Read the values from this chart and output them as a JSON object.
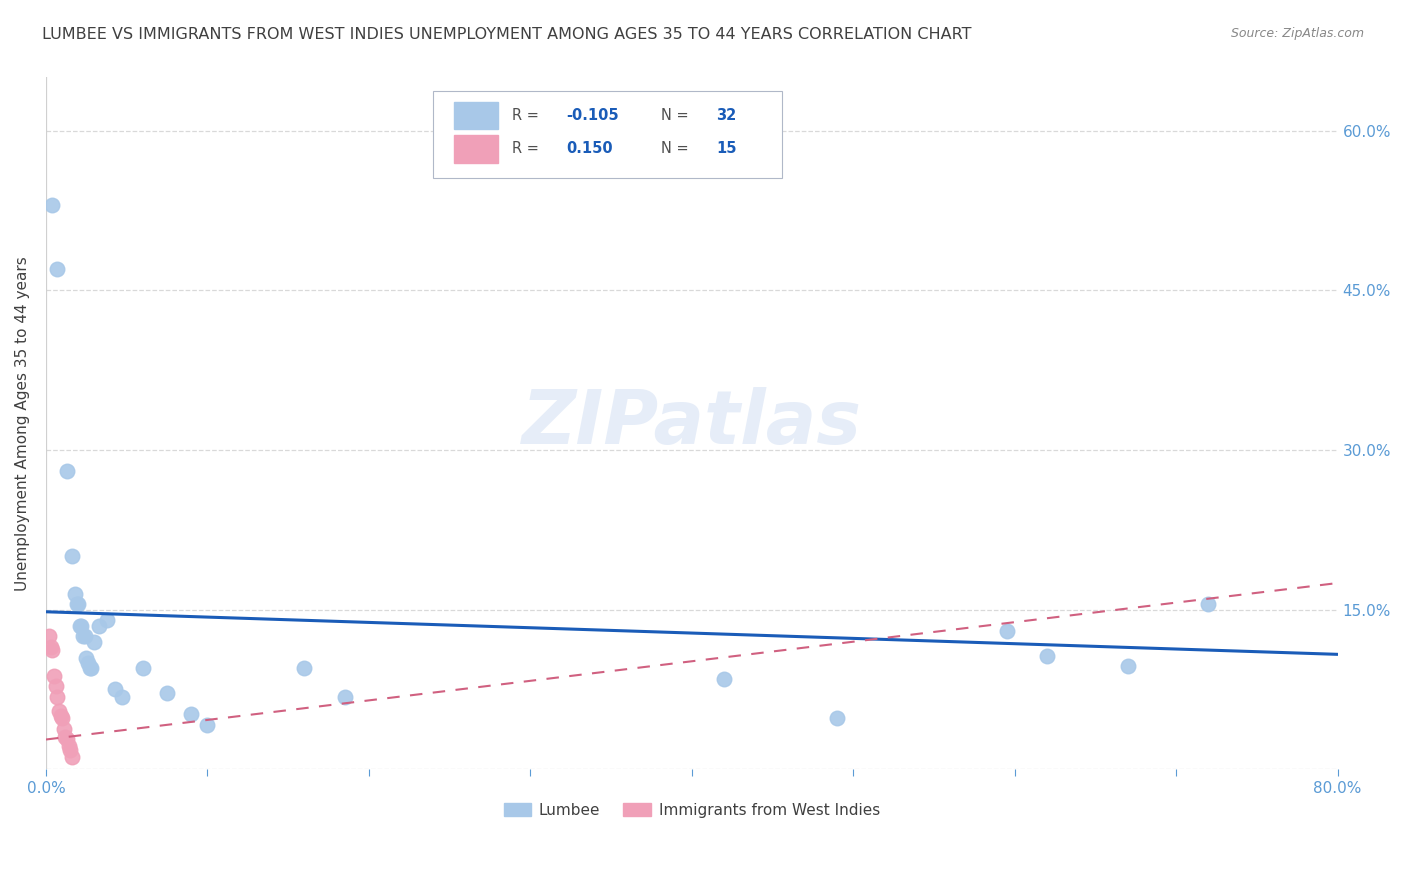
{
  "title": "LUMBEE VS IMMIGRANTS FROM WEST INDIES UNEMPLOYMENT AMONG AGES 35 TO 44 YEARS CORRELATION CHART",
  "source": "Source: ZipAtlas.com",
  "ylabel": "Unemployment Among Ages 35 to 44 years",
  "watermark": "ZIPatlas",
  "xlim": [
    0.0,
    0.8
  ],
  "ylim": [
    0.0,
    0.65
  ],
  "ytick_vals": [
    0.0,
    0.15,
    0.3,
    0.45,
    0.6
  ],
  "ytick_labels": [
    "",
    "15.0%",
    "30.0%",
    "45.0%",
    "60.0%"
  ],
  "xtick_vals": [
    0.0,
    0.1,
    0.2,
    0.3,
    0.4,
    0.5,
    0.6,
    0.7,
    0.8
  ],
  "xtick_labels": [
    "0.0%",
    "",
    "",
    "",
    "",
    "",
    "",
    "",
    "80.0%"
  ],
  "lumbee_color": "#a8c8e8",
  "westindies_color": "#f0a0b8",
  "lumbee_line_color": "#1a5cb8",
  "westindies_line_color": "#d06080",
  "lumbee_scatter": [
    [
      0.004,
      0.53
    ],
    [
      0.007,
      0.47
    ],
    [
      0.013,
      0.28
    ],
    [
      0.016,
      0.2
    ],
    [
      0.018,
      0.165
    ],
    [
      0.019,
      0.155
    ],
    [
      0.02,
      0.155
    ],
    [
      0.021,
      0.135
    ],
    [
      0.022,
      0.135
    ],
    [
      0.023,
      0.125
    ],
    [
      0.024,
      0.125
    ],
    [
      0.025,
      0.105
    ],
    [
      0.026,
      0.1
    ],
    [
      0.027,
      0.095
    ],
    [
      0.028,
      0.095
    ],
    [
      0.03,
      0.12
    ],
    [
      0.033,
      0.135
    ],
    [
      0.038,
      0.14
    ],
    [
      0.043,
      0.075
    ],
    [
      0.047,
      0.068
    ],
    [
      0.06,
      0.095
    ],
    [
      0.075,
      0.072
    ],
    [
      0.09,
      0.052
    ],
    [
      0.1,
      0.042
    ],
    [
      0.16,
      0.095
    ],
    [
      0.185,
      0.068
    ],
    [
      0.42,
      0.085
    ],
    [
      0.49,
      0.048
    ],
    [
      0.595,
      0.13
    ],
    [
      0.62,
      0.106
    ],
    [
      0.67,
      0.097
    ],
    [
      0.72,
      0.155
    ]
  ],
  "westindies_scatter": [
    [
      0.002,
      0.125
    ],
    [
      0.003,
      0.115
    ],
    [
      0.004,
      0.112
    ],
    [
      0.005,
      0.088
    ],
    [
      0.006,
      0.078
    ],
    [
      0.007,
      0.068
    ],
    [
      0.008,
      0.055
    ],
    [
      0.009,
      0.05
    ],
    [
      0.01,
      0.048
    ],
    [
      0.011,
      0.038
    ],
    [
      0.012,
      0.03
    ],
    [
      0.013,
      0.028
    ],
    [
      0.014,
      0.022
    ],
    [
      0.015,
      0.018
    ],
    [
      0.016,
      0.012
    ]
  ],
  "lumbee_trendline_x": [
    0.0,
    0.8
  ],
  "lumbee_trendline_y": [
    0.148,
    0.108
  ],
  "westindies_trendline_x": [
    0.0,
    0.8
  ],
  "westindies_trendline_y": [
    0.028,
    0.175
  ],
  "grid_color": "#d0d0d0",
  "background_color": "#ffffff",
  "title_color": "#404040",
  "tick_color": "#5b9bd5",
  "source_color": "#888888"
}
